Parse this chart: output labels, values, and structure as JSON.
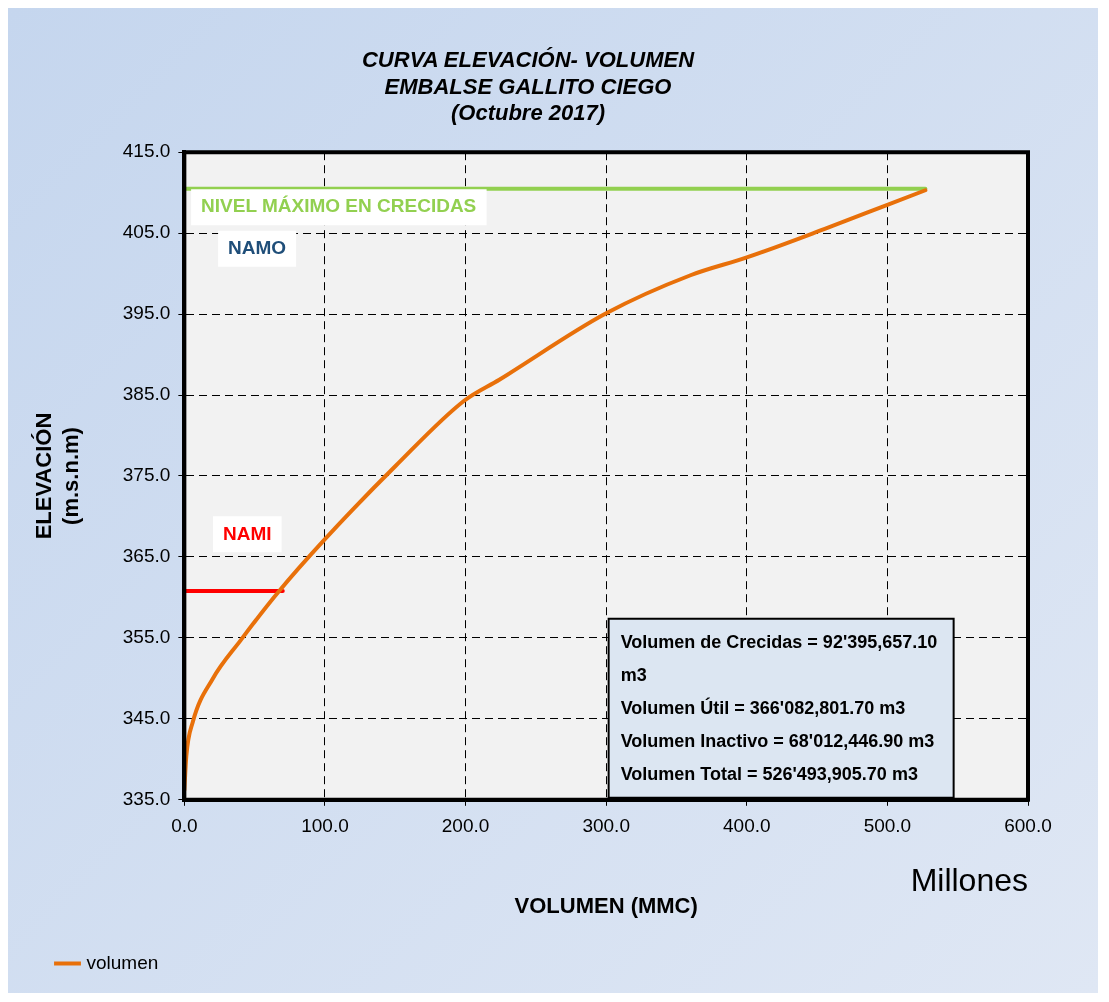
{
  "chart_data": {
    "type": "line",
    "title": "CURVA ELEVACIÓN- VOLUMEN",
    "subtitle": "EMBALSE GALLITO CIEGO\n(Octubre 2017)",
    "xlabel": "VOLUMEN (MMC)",
    "ylabel": "ELEVACIÓN\n(m.s.n.m)",
    "series": [
      {
        "name": "volumen",
        "color": "#e8700a",
        "x": [
          0,
          1.4,
          6,
          20,
          40,
          67,
          100,
          150,
          199,
          224,
          300,
          360,
          400,
          455,
          500,
          527
        ],
        "values": [
          336.2,
          340.4,
          344.6,
          349.9,
          354.7,
          360.7,
          367.2,
          376.2,
          384.3,
          386.9,
          395.1,
          399.8,
          402,
          405.5,
          408.5,
          410.3
        ]
      },
      {
        "color": "#92d050",
        "x": [
          0,
          527
        ],
        "values": [
          410.5,
          410.5
        ]
      },
      {
        "color": "#ff0000",
        "x": [
          0,
          70
        ],
        "values": [
          360.8,
          360.8
        ]
      }
    ],
    "xlim": [
      0,
      600
    ],
    "xticks": [
      {
        "value": 0,
        "label": "0.0"
      },
      {
        "value": 100,
        "label": "100.0"
      },
      {
        "value": 200,
        "label": "200.0"
      },
      {
        "value": 300,
        "label": "300.0"
      },
      {
        "value": 400,
        "label": "400.0"
      },
      {
        "value": 500,
        "label": "500.0"
      },
      {
        "value": 600,
        "label": "600.0"
      }
    ],
    "ylim": [
      335,
      415
    ],
    "yticks": [
      {
        "value": 335,
        "label": "335.0"
      },
      {
        "value": 345,
        "label": "345.0"
      },
      {
        "value": 355,
        "label": "355.0"
      },
      {
        "value": 365,
        "label": "365.0"
      },
      {
        "value": 375,
        "label": "375.0"
      },
      {
        "value": 385,
        "label": "385.0"
      },
      {
        "value": 395,
        "label": "395.0"
      },
      {
        "value": 405,
        "label": "405.0"
      },
      {
        "value": 415,
        "label": "415.0"
      }
    ],
    "annotations": [
      "NIVEL MÁXIMO EN CRECIDAS",
      "NAMO",
      "NAMI",
      "Volumen de Crecidas = 92'395,657.10 m3",
      "Volumen Útil = 366'082,801.70 m3",
      "Volumen Inactivo = 68'012,446.90 m3",
      "Volumen Total = 526'493,905.70 m3",
      "Millones"
    ],
    "grid": true,
    "legend": "bottom left",
    "marker": "none",
    "line_style": "solid"
  }
}
